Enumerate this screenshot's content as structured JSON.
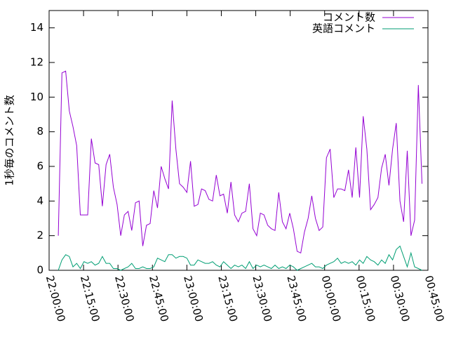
{
  "chart_data": {
    "type": "line",
    "ylabel": "1秒毎のコメント数",
    "x": [
      4.0,
      5.6,
      7.2,
      8.8,
      10.4,
      12.0,
      13.6,
      15.2,
      16.8,
      18.4,
      20.0,
      21.6,
      23.2,
      24.8,
      26.4,
      28.0,
      29.6,
      31.2,
      32.8,
      34.4,
      36.0,
      37.6,
      39.2,
      40.8,
      42.4,
      44.0,
      45.6,
      47.2,
      48.8,
      50.4,
      52.0,
      53.6,
      55.2,
      56.8,
      58.4,
      60.0,
      61.6,
      63.2,
      64.8,
      66.4,
      68.0,
      69.6,
      71.2,
      72.8,
      74.4,
      76.0,
      77.6,
      79.2,
      80.8,
      82.4,
      84.0,
      85.6,
      87.2,
      88.8,
      90.4,
      92.0,
      93.6,
      95.2,
      96.8,
      98.4,
      100.0,
      101.6,
      103.2,
      104.8,
      106.4,
      108.0,
      109.6,
      111.2,
      112.8,
      114.4,
      116.0,
      117.6,
      119.2,
      120.8,
      122.4,
      124.0,
      125.6,
      127.2,
      128.8,
      130.4,
      132.0,
      133.6,
      135.2,
      136.8,
      138.4,
      140.0,
      141.6,
      143.2,
      144.8,
      146.4,
      148.0,
      149.6,
      151.2,
      152.8,
      154.4,
      156.0,
      157.6,
      159.2,
      160.8,
      162.4
    ],
    "series": [
      {
        "name": "コメント数",
        "color": "#9400d3",
        "values": [
          2.0,
          11.4,
          11.5,
          9.2,
          8.3,
          7.2,
          3.2,
          3.2,
          3.2,
          7.6,
          6.2,
          6.1,
          3.7,
          6.1,
          6.7,
          4.8,
          3.8,
          2.0,
          3.2,
          3.4,
          2.3,
          3.9,
          4.0,
          1.4,
          2.6,
          2.7,
          4.6,
          3.6,
          6.0,
          5.3,
          4.7,
          9.8,
          7.0,
          5.0,
          4.8,
          4.5,
          6.3,
          3.7,
          3.8,
          4.7,
          4.6,
          4.1,
          4.0,
          5.5,
          4.3,
          4.4,
          3.3,
          5.1,
          3.2,
          2.8,
          3.3,
          3.4,
          5.0,
          2.4,
          2.0,
          3.3,
          3.2,
          2.6,
          2.4,
          2.3,
          4.5,
          2.8,
          2.4,
          3.3,
          2.4,
          1.1,
          1.0,
          2.2,
          3.0,
          4.3,
          3.0,
          2.3,
          2.5,
          6.5,
          7.0,
          4.2,
          4.7,
          4.7,
          4.6,
          5.8,
          4.2,
          7.1,
          4.2,
          8.9,
          7.0,
          3.5,
          3.8,
          4.2,
          5.9,
          6.7,
          4.9,
          7.0,
          8.5,
          4.0,
          2.8,
          6.9,
          2.0,
          2.9,
          10.7,
          5.0
        ]
      },
      {
        "name": "英語コメント",
        "color": "#009e73",
        "values": [
          0,
          0.6,
          0.9,
          0.8,
          0.2,
          0.4,
          0.1,
          0.5,
          0.4,
          0.5,
          0.3,
          0.4,
          0.8,
          0.4,
          0.4,
          0.1,
          0.1,
          0.0,
          0.1,
          0.2,
          0.4,
          0.1,
          0.1,
          0.2,
          0.1,
          0.1,
          0.2,
          0.7,
          0.6,
          0.5,
          0.9,
          0.9,
          0.7,
          0.8,
          0.8,
          0.7,
          0.3,
          0.3,
          0.6,
          0.5,
          0.4,
          0.4,
          0.5,
          0.3,
          0.2,
          0.5,
          0.3,
          0.1,
          0.3,
          0.2,
          0.3,
          0.1,
          0.5,
          0.1,
          0.3,
          0.2,
          0.3,
          0.2,
          0.1,
          0.3,
          0.1,
          0.2,
          0.1,
          0.3,
          0.2,
          0.0,
          0.1,
          0.2,
          0.3,
          0.4,
          0.2,
          0.2,
          0.1,
          0.3,
          0.4,
          0.5,
          0.7,
          0.4,
          0.5,
          0.4,
          0.5,
          0.3,
          0.6,
          0.4,
          0.8,
          0.6,
          0.5,
          0.3,
          0.6,
          0.4,
          0.9,
          0.6,
          1.2,
          1.4,
          0.8,
          0.2,
          1.0,
          0.2,
          0.1,
          0.0
        ]
      }
    ],
    "xlim": [
      0,
      165
    ],
    "xticks": [
      {
        "value": 0,
        "label": "22:00:00"
      },
      {
        "value": 15,
        "label": "22:15:00"
      },
      {
        "value": 30,
        "label": "22:30:00"
      },
      {
        "value": 45,
        "label": "22:45:00"
      },
      {
        "value": 60,
        "label": "23:00:00"
      },
      {
        "value": 75,
        "label": "23:15:00"
      },
      {
        "value": 90,
        "label": "23:30:00"
      },
      {
        "value": 105,
        "label": "23:45:00"
      },
      {
        "value": 120,
        "label": "00:00:00"
      },
      {
        "value": 135,
        "label": "00:15:00"
      },
      {
        "value": 150,
        "label": "00:30:00"
      },
      {
        "value": 165,
        "label": "00:45:00"
      }
    ],
    "ylim": [
      0,
      15
    ],
    "yticks": [
      0,
      2,
      4,
      6,
      8,
      10,
      12,
      14
    ],
    "legend": "top-right"
  }
}
